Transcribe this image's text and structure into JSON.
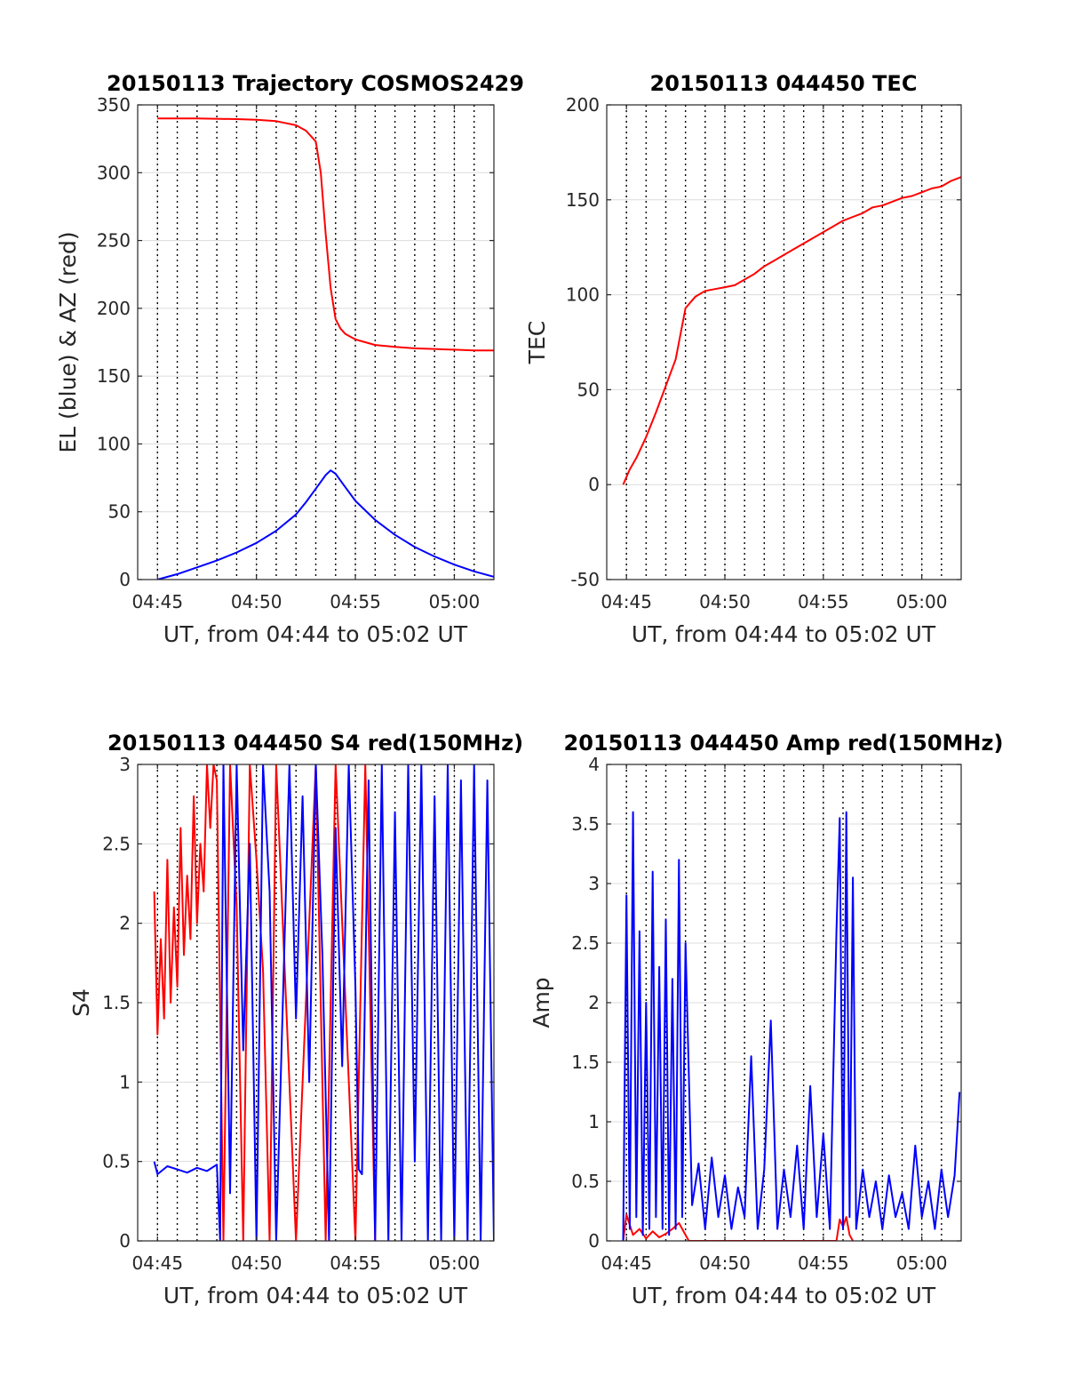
{
  "colors": {
    "red": "#ff0000",
    "blue": "#0000ff",
    "grid": "#dcdcdc",
    "axis": "#262626"
  },
  "vline_times": [
    "04:45",
    "04:46",
    "04:47",
    "04:48",
    "04:49",
    "04:50",
    "04:51",
    "04:52",
    "04:53",
    "04:54",
    "04:55",
    "04:56",
    "04:57",
    "04:58",
    "04:59",
    "05:00",
    "05:01"
  ],
  "chart_data": [
    {
      "id": "trajectory",
      "type": "line",
      "title": "20150113 Trajectory COSMOS2429",
      "xlabel": "UT, from 04:44 to 05:02 UT",
      "ylabel": "EL (blue) & AZ (red)",
      "xlim": [
        "04:44:00",
        "05:02:00"
      ],
      "ylim": [
        0,
        350
      ],
      "xticks": [
        "04:45",
        "04:50",
        "04:55",
        "05:00"
      ],
      "yticks": [
        0,
        50,
        100,
        150,
        200,
        250,
        300,
        350
      ],
      "grid": true,
      "series": [
        {
          "color": "red",
          "x": [
            "04:45:00",
            "04:47:00",
            "04:49:00",
            "04:50:00",
            "04:51:00",
            "04:52:00",
            "04:52:30",
            "04:53:00",
            "04:53:15",
            "04:53:30",
            "04:53:45",
            "04:54:00",
            "04:54:15",
            "04:54:30",
            "04:55:00",
            "04:55:30",
            "04:56:00",
            "04:57:00",
            "04:58:00",
            "04:59:00",
            "05:00:00",
            "05:01:00",
            "05:02:00"
          ],
          "y": [
            340,
            340,
            339.5,
            339,
            338,
            335,
            331,
            323,
            300,
            255,
            215,
            192,
            185,
            181,
            177,
            175,
            173,
            171.5,
            170.5,
            170,
            169.5,
            169,
            169
          ]
        },
        {
          "color": "blue",
          "x": [
            "04:45:00",
            "04:46:00",
            "04:47:00",
            "04:48:00",
            "04:49:00",
            "04:50:00",
            "04:51:00",
            "04:52:00",
            "04:52:30",
            "04:53:00",
            "04:53:30",
            "04:53:45",
            "04:54:00",
            "04:54:30",
            "04:55:00",
            "04:56:00",
            "04:57:00",
            "04:58:00",
            "04:59:00",
            "05:00:00",
            "05:01:00",
            "05:02:00"
          ],
          "y": [
            0,
            4,
            9,
            14,
            20,
            27,
            36,
            48,
            57,
            67,
            77,
            80.5,
            78,
            68,
            58,
            44,
            33,
            24,
            17,
            11,
            6,
            2
          ]
        }
      ]
    },
    {
      "id": "tec",
      "type": "line",
      "title": "20150113 044450 TEC",
      "xlabel": "UT, from 04:44 to 05:02 UT",
      "ylabel": "TEC",
      "xlim": [
        "04:44:00",
        "05:02:00"
      ],
      "ylim": [
        -50,
        200
      ],
      "xticks": [
        "04:45",
        "04:50",
        "04:55",
        "05:00"
      ],
      "yticks": [
        -50,
        0,
        50,
        100,
        150,
        200
      ],
      "grid": true,
      "series": [
        {
          "color": "red",
          "x": [
            "04:44:50",
            "04:45:10",
            "04:45:30",
            "04:46:00",
            "04:46:30",
            "04:47:00",
            "04:47:30",
            "04:48:00",
            "04:48:30",
            "04:49:00",
            "04:49:30",
            "04:50:00",
            "04:50:30",
            "04:51:00",
            "04:51:30",
            "04:52:00",
            "04:52:30",
            "04:53:00",
            "04:53:30",
            "04:54:00",
            "04:54:30",
            "04:55:00",
            "04:55:30",
            "04:56:00",
            "04:56:30",
            "04:57:00",
            "04:57:30",
            "04:58:00",
            "04:58:30",
            "04:59:00",
            "04:59:30",
            "05:00:00",
            "05:00:30",
            "05:01:00",
            "05:01:30",
            "05:02:00"
          ],
          "y": [
            0,
            8,
            14,
            25,
            38,
            52,
            66,
            93,
            99,
            102,
            103,
            104,
            105,
            108,
            111,
            115,
            118,
            121,
            124,
            127,
            130,
            133,
            136,
            139,
            141,
            143,
            146,
            147,
            149,
            151,
            152,
            154,
            156,
            157,
            160,
            162
          ]
        }
      ]
    },
    {
      "id": "s4",
      "type": "line",
      "title": "20150113 044450 S4 red(150MHz)",
      "xlabel": "UT, from 04:44 to 05:02 UT",
      "ylabel": "S4",
      "xlim": [
        "04:44:00",
        "05:02:00"
      ],
      "ylim": [
        0,
        3
      ],
      "xticks": [
        "04:45",
        "04:50",
        "04:55",
        "05:00"
      ],
      "yticks": [
        0,
        0.5,
        1,
        1.5,
        2,
        2.5,
        3
      ],
      "grid": true,
      "series": [
        {
          "color": "red",
          "x": [
            "04:44:50",
            "04:45:00",
            "04:45:10",
            "04:45:20",
            "04:45:30",
            "04:45:40",
            "04:45:50",
            "04:46:00",
            "04:46:10",
            "04:46:20",
            "04:46:30",
            "04:46:40",
            "04:46:50",
            "04:47:00",
            "04:47:10",
            "04:47:20",
            "04:47:30",
            "04:47:40",
            "04:47:50",
            "04:48:00",
            "04:48:20",
            "04:48:40",
            "04:49:00",
            "04:49:20",
            "04:49:40",
            "04:50:00",
            "04:50:20",
            "04:50:40",
            "04:51:00",
            "04:52:00",
            "04:53:00",
            "04:53:30",
            "04:54:00",
            "04:55:00",
            "04:55:30",
            "04:56:00"
          ],
          "y": [
            2.2,
            1.3,
            1.9,
            1.4,
            2.4,
            1.5,
            2.1,
            1.6,
            2.6,
            1.8,
            2.3,
            1.9,
            2.8,
            2.0,
            2.5,
            2.2,
            3.0,
            2.6,
            3.0,
            2.9,
            0,
            3.0,
            2.1,
            0,
            3.0,
            2.4,
            1.7,
            0,
            3.0,
            0,
            3.0,
            0,
            3.0,
            0,
            3.0,
            0
          ]
        },
        {
          "color": "blue",
          "x": [
            "04:44:50",
            "04:45:00",
            "04:45:30",
            "04:46:00",
            "04:46:30",
            "04:47:00",
            "04:47:30",
            "04:48:00",
            "04:48:10",
            "04:48:20",
            "04:48:40",
            "04:49:00",
            "04:49:20",
            "04:49:40",
            "04:50:00",
            "04:50:20",
            "04:50:40",
            "04:51:00",
            "04:51:20",
            "04:51:40",
            "04:52:00",
            "04:52:20",
            "04:52:40",
            "04:53:00",
            "04:53:20",
            "04:53:40",
            "04:54:00",
            "04:54:20",
            "04:54:40",
            "04:55:00",
            "04:55:10",
            "04:55:20",
            "04:55:40",
            "04:56:00",
            "04:56:20",
            "04:56:40",
            "04:57:00",
            "04:57:20",
            "04:57:40",
            "04:58:00",
            "04:58:20",
            "04:58:40",
            "04:59:00",
            "04:59:20",
            "04:59:40",
            "05:00:00",
            "05:00:20",
            "05:00:40",
            "05:01:00",
            "05:01:20",
            "05:01:40",
            "05:02:00"
          ],
          "y": [
            0.5,
            0.42,
            0.47,
            0.45,
            0.43,
            0.46,
            0.44,
            0.48,
            0,
            3.0,
            0.3,
            3.0,
            1.2,
            2.5,
            0,
            3.0,
            2.2,
            0,
            1.5,
            3.0,
            1.4,
            2.8,
            1.0,
            3.0,
            1.8,
            0,
            2.6,
            1.1,
            3.0,
            1.6,
            0.45,
            0.42,
            2.9,
            0,
            3.0,
            0,
            2.7,
            0,
            3.0,
            0.5,
            3.0,
            0,
            2.8,
            0,
            3.0,
            0,
            2.9,
            0,
            3.0,
            0,
            2.9,
            0
          ]
        }
      ]
    },
    {
      "id": "amp",
      "type": "line",
      "title": "20150113 044450 Amp red(150MHz)",
      "xlabel": "UT, from 04:44 to 05:02 UT",
      "ylabel": "Amp",
      "xlim": [
        "04:44:00",
        "05:02:00"
      ],
      "ylim": [
        0,
        4
      ],
      "xticks": [
        "04:45",
        "04:50",
        "04:55",
        "05:00"
      ],
      "yticks": [
        0,
        0.5,
        1,
        1.5,
        2,
        2.5,
        3,
        3.5,
        4
      ],
      "grid": true,
      "series": [
        {
          "color": "red",
          "x": [
            "04:44:50",
            "04:45:00",
            "04:45:20",
            "04:45:40",
            "04:46:00",
            "04:46:20",
            "04:46:40",
            "04:47:00",
            "04:47:20",
            "04:47:40",
            "04:48:00",
            "04:48:10",
            "04:55:40",
            "04:55:50",
            "04:56:00",
            "04:56:10",
            "04:56:20",
            "04:56:30"
          ],
          "y": [
            0,
            0.22,
            0.05,
            0.1,
            0.02,
            0.08,
            0.03,
            0.06,
            0.1,
            0.15,
            0.05,
            0,
            0,
            0.18,
            0.12,
            0.2,
            0.05,
            0
          ]
        },
        {
          "color": "blue",
          "x": [
            "04:44:50",
            "04:45:00",
            "04:45:10",
            "04:45:20",
            "04:45:30",
            "04:45:40",
            "04:45:50",
            "04:46:00",
            "04:46:10",
            "04:46:20",
            "04:46:30",
            "04:46:40",
            "04:46:50",
            "04:47:00",
            "04:47:10",
            "04:47:20",
            "04:47:30",
            "04:47:40",
            "04:47:50",
            "04:48:00",
            "04:48:20",
            "04:48:40",
            "04:49:00",
            "04:49:20",
            "04:49:40",
            "04:50:00",
            "04:50:20",
            "04:50:40",
            "04:51:00",
            "04:51:20",
            "04:51:40",
            "04:52:00",
            "04:52:20",
            "04:52:40",
            "04:53:00",
            "04:53:20",
            "04:53:40",
            "04:54:00",
            "04:54:20",
            "04:54:40",
            "04:55:00",
            "04:55:20",
            "04:55:40",
            "04:55:50",
            "04:56:00",
            "04:56:10",
            "04:56:20",
            "04:56:30",
            "04:56:40",
            "04:57:00",
            "04:57:20",
            "04:57:40",
            "04:58:00",
            "04:58:20",
            "04:58:40",
            "04:59:00",
            "04:59:20",
            "04:59:40",
            "05:00:00",
            "05:00:20",
            "05:00:40",
            "05:01:00",
            "05:01:20",
            "05:01:40",
            "05:01:55"
          ],
          "y": [
            0,
            2.9,
            0.1,
            3.6,
            0.2,
            2.6,
            0.05,
            2.0,
            0.1,
            3.1,
            0.2,
            2.3,
            0.1,
            2.7,
            0.05,
            2.2,
            0.1,
            3.2,
            0.2,
            2.5,
            0.3,
            0.65,
            0.1,
            0.7,
            0.2,
            0.55,
            0.1,
            0.45,
            0.2,
            1.55,
            0.1,
            0.6,
            1.85,
            0.1,
            0.6,
            0.2,
            0.8,
            0.1,
            1.3,
            0.2,
            0.9,
            0.1,
            2.6,
            3.55,
            0.1,
            3.6,
            0.2,
            3.05,
            0.1,
            0.6,
            0.2,
            0.5,
            0.1,
            0.55,
            0.2,
            0.4,
            0.1,
            0.8,
            0.2,
            0.5,
            0.1,
            0.6,
            0.2,
            0.55,
            1.25
          ]
        }
      ]
    }
  ]
}
